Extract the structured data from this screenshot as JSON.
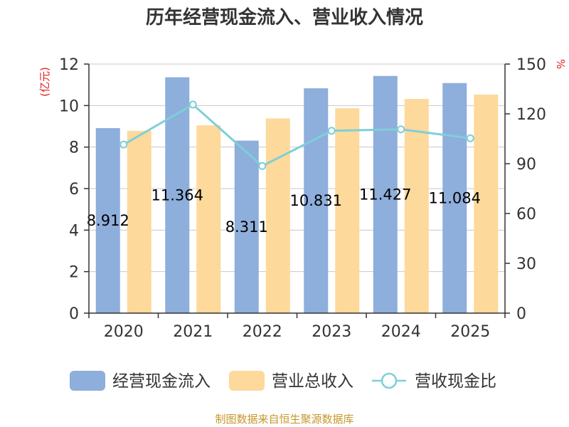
{
  "chart_data": {
    "type": "bar",
    "title": "历年经营现金流入、营业收入情况",
    "categories": [
      "2020",
      "2021",
      "2022",
      "2023",
      "2024",
      "2025"
    ],
    "series": [
      {
        "name": "经营现金流入",
        "kind": "bar",
        "axis": "left",
        "color": "#8eaedb",
        "values": [
          8.912,
          11.364,
          8.311,
          10.831,
          11.427,
          11.084
        ]
      },
      {
        "name": "营业总收入",
        "kind": "bar",
        "axis": "left",
        "color": "#fdd99b",
        "values": [
          8.78,
          9.05,
          9.38,
          9.87,
          10.32,
          10.53
        ]
      },
      {
        "name": "营收现金比",
        "kind": "line",
        "axis": "right",
        "color": "#7ecfd9",
        "values": [
          101.5,
          125.6,
          88.6,
          109.8,
          110.7,
          105.3
        ]
      }
    ],
    "data_labels": [
      "8.912",
      "11.364",
      "8.311",
      "10.831",
      "11.427",
      "11.084"
    ],
    "y_left": {
      "label": "(亿元)",
      "ylim": [
        0,
        12
      ],
      "ticks": [
        "0",
        "2",
        "4",
        "6",
        "8",
        "10",
        "12"
      ]
    },
    "y_right": {
      "label": "%",
      "ylim": [
        0,
        150
      ],
      "ticks": [
        "0",
        "30",
        "60",
        "90",
        "120",
        "150"
      ]
    },
    "grid": true,
    "legend_position": "bottom"
  },
  "source_note": "制图数据来自恒生聚源数据库"
}
